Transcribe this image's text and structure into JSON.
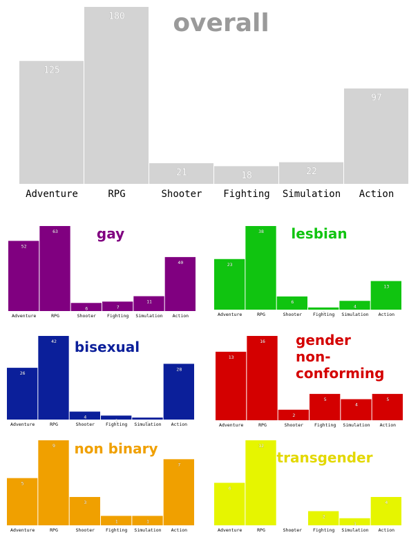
{
  "chart_data": [
    {
      "type": "bar",
      "title": "overall",
      "categories": [
        "Adventure",
        "RPG",
        "Shooter",
        "Fighting",
        "Simulation",
        "Action"
      ],
      "values": [
        125,
        180,
        21,
        18,
        22,
        97
      ],
      "color": "#d3d3d3"
    },
    {
      "type": "bar",
      "title": "gay",
      "categories": [
        "Adventure",
        "RPG",
        "Shooter",
        "Fighting",
        "Simulation",
        "Action"
      ],
      "values": [
        52,
        63,
        6,
        7,
        11,
        40
      ],
      "color": "#800080"
    },
    {
      "type": "bar",
      "title": "lesbian",
      "categories": [
        "Adventure",
        "RPG",
        "Shooter",
        "Fighting",
        "Simulation",
        "Action"
      ],
      "values": [
        23,
        38,
        6,
        1,
        4,
        13
      ],
      "color": "#10c410"
    },
    {
      "type": "bar",
      "title": "bisexual",
      "categories": [
        "Adventure",
        "RPG",
        "Shooter",
        "Fighting",
        "Simulation",
        "Action"
      ],
      "values": [
        26,
        42,
        4,
        2,
        1,
        28
      ],
      "color": "#0b1f9a"
    },
    {
      "type": "bar",
      "title": "gender\nnon-conforming",
      "categories": [
        "Adventure",
        "RPG",
        "Shooter",
        "Fighting",
        "Simulation",
        "Action"
      ],
      "values": [
        13,
        16,
        2,
        5,
        4,
        5
      ],
      "color": "#d40000"
    },
    {
      "type": "bar",
      "title": "non binary",
      "categories": [
        "Adventure",
        "RPG",
        "Shooter",
        "Fighting",
        "Simulation",
        "Action"
      ],
      "values": [
        5,
        9,
        3,
        1,
        1,
        7
      ],
      "color": "#f0a000"
    },
    {
      "type": "bar",
      "title": "transgender",
      "categories": [
        "Adventure",
        "RPG",
        "Shooter",
        "Fighting",
        "Simulation",
        "Action"
      ],
      "values": [
        6,
        12,
        0,
        2,
        1,
        4
      ],
      "color": "#e6f500"
    }
  ]
}
